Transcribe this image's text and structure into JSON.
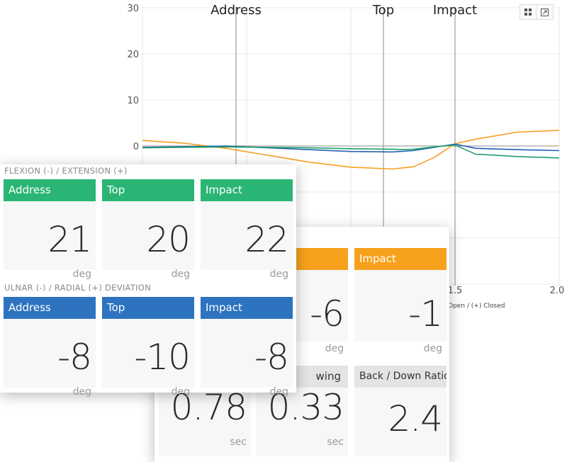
{
  "chart": {
    "y_ticks": [
      "30",
      "20",
      "10",
      "0"
    ],
    "x_ticks": [
      "1.5",
      "2.0"
    ],
    "events": [
      "Address",
      "Top",
      "Impact"
    ],
    "legend_caption": "Open / (+) Closed",
    "colors": {
      "orange": "#f5a01f",
      "blue": "#2160b4",
      "green": "#1f9e6c"
    }
  },
  "chart_data": {
    "type": "line",
    "x_ticks_visible": [
      1.5,
      2.0
    ],
    "y_ticks_visible": [
      0,
      10,
      20,
      30
    ],
    "ylim": [
      -10,
      30
    ],
    "annotations": [
      "Address",
      "Top",
      "Impact"
    ],
    "series": [
      {
        "color": "#f5a01f",
        "x": [
          0.0,
          0.2,
          0.4,
          0.6,
          0.8,
          1.0,
          1.2,
          1.3,
          1.4,
          1.5,
          1.6,
          1.8,
          2.0
        ],
        "y": [
          1.2,
          0.6,
          -0.5,
          -2.0,
          -3.5,
          -4.6,
          -5.0,
          -4.5,
          -2.5,
          0.5,
          1.5,
          3.0,
          3.4
        ]
      },
      {
        "color": "#2160b4",
        "x": [
          0.0,
          0.2,
          0.4,
          0.6,
          0.8,
          1.0,
          1.2,
          1.3,
          1.4,
          1.5,
          1.6,
          1.8,
          2.0
        ],
        "y": [
          -0.3,
          -0.2,
          0.0,
          -0.4,
          -0.8,
          -1.2,
          -1.3,
          -1.0,
          -0.3,
          0.4,
          -0.5,
          -0.8,
          -1.0
        ]
      },
      {
        "color": "#1f9e6c",
        "x": [
          0.0,
          0.2,
          0.4,
          0.6,
          0.8,
          1.0,
          1.2,
          1.25,
          1.3,
          1.4,
          1.5,
          1.6,
          1.65,
          1.8,
          2.0
        ],
        "y": [
          -0.4,
          -0.3,
          -0.2,
          -0.3,
          -0.4,
          -0.6,
          -0.7,
          -0.8,
          -0.7,
          -0.2,
          0.2,
          -1.8,
          -1.9,
          -2.3,
          -2.6
        ]
      }
    ]
  },
  "sections": {
    "flexion_title": "FLEXION (-) / EXTENSION (+)",
    "deviation_title": "ULNAR (-) / RADIAL (+) DEVIATION"
  },
  "flexion": [
    {
      "label": "Address",
      "value": "21",
      "unit": "deg"
    },
    {
      "label": "Top",
      "value": "20",
      "unit": "deg"
    },
    {
      "label": "Impact",
      "value": "22",
      "unit": "deg"
    }
  ],
  "deviation": [
    {
      "label": "Address",
      "value": "-8",
      "unit": "deg"
    },
    {
      "label": "Top",
      "value": "-10",
      "unit": "deg"
    },
    {
      "label": "Impact",
      "value": "-8",
      "unit": "deg"
    }
  ],
  "back_panel": {
    "rotation": [
      {
        "label": "",
        "value": "-6",
        "unit": "deg"
      },
      {
        "label": "Impact",
        "value": "-1",
        "unit": "deg"
      }
    ],
    "timing": [
      {
        "label": "",
        "value": "0.78",
        "unit": "sec"
      },
      {
        "label": "wing",
        "value": "0.33",
        "unit": "sec"
      },
      {
        "label": "Back / Down Ratio",
        "value": "2.4",
        "unit": ""
      }
    ]
  }
}
